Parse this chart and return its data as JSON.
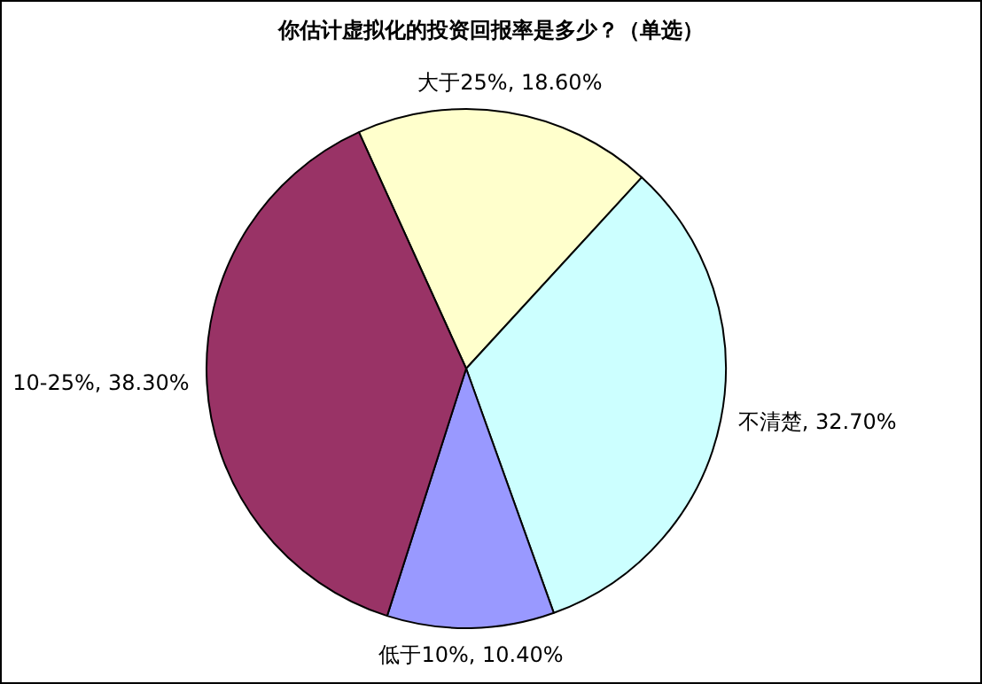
{
  "chart_data": {
    "type": "pie",
    "title": "你估计虚拟化的投资回报率是多少？（单选）",
    "categories": [
      "大于25%",
      "不清楚",
      "低于10%",
      "10-25%"
    ],
    "values": [
      18.6,
      32.7,
      10.4,
      38.3
    ],
    "value_labels": [
      "18.60%",
      "32.70%",
      "10.40%",
      "38.30%"
    ],
    "colors": [
      "#ffffcc",
      "#ccffff",
      "#9999ff",
      "#993366"
    ],
    "legend": false
  }
}
